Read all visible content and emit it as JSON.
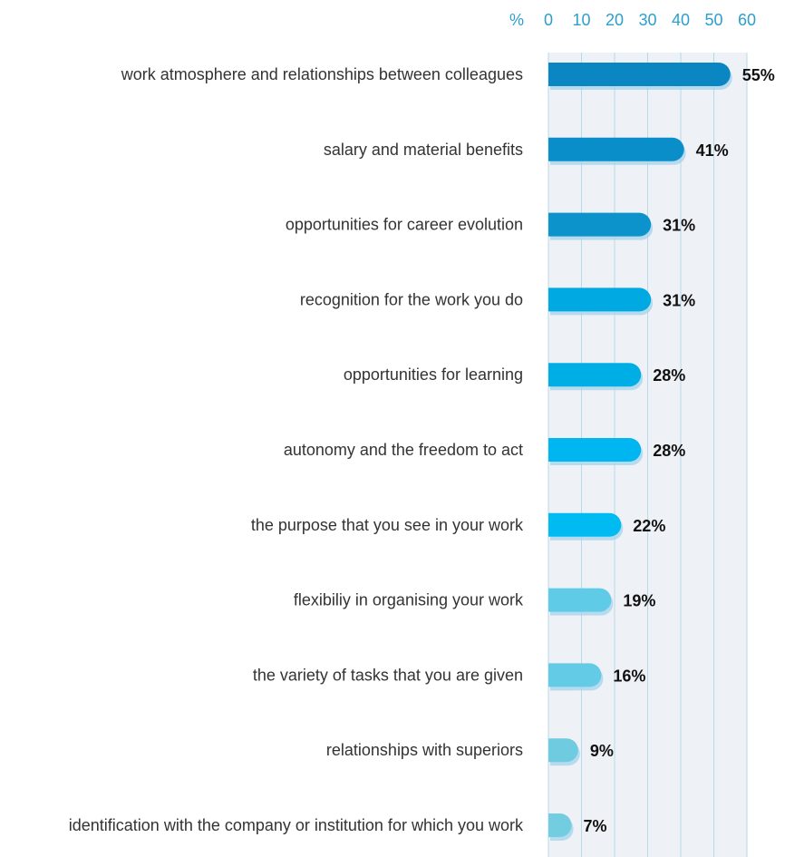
{
  "chart_data": {
    "type": "bar",
    "orientation": "horizontal",
    "title": "",
    "xlabel": "",
    "ylabel": "",
    "unit_label": "%",
    "xlim": [
      0,
      60
    ],
    "xticks": [
      "0",
      "10",
      "20",
      "30",
      "40",
      "50",
      "60"
    ],
    "grid": true,
    "categories": [
      "work atmosphere and relationships between colleagues",
      "salary and material benefits",
      "opportunities for career evolution",
      "recognition for the work you do",
      "opportunities for learning",
      "autonomy and the freedom to act",
      "the purpose that you see in your work",
      "flexibiliy in organising your work",
      "the variety of tasks that you are given",
      "relationships with superiors",
      "identification with the company or institution for which you work"
    ],
    "values": [
      55,
      41,
      31,
      31,
      28,
      28,
      22,
      19,
      16,
      9,
      7
    ],
    "value_labels": [
      "55%",
      "41%",
      "31%",
      "31%",
      "28%",
      "28%",
      "22%",
      "19%",
      "16%",
      "9%",
      "7%"
    ],
    "bar_colors": [
      "#0a87c2",
      "#0a8ec9",
      "#0d93cc",
      "#00a9e1",
      "#00aee6",
      "#00b6f0",
      "#00bbf2",
      "#5fcbe6",
      "#63cbe6",
      "#6fcbe0",
      "#72cde0"
    ],
    "plot_background": "#eef2f6",
    "grid_color": "#b8d8ec",
    "tick_color": "#2a9fd0"
  }
}
